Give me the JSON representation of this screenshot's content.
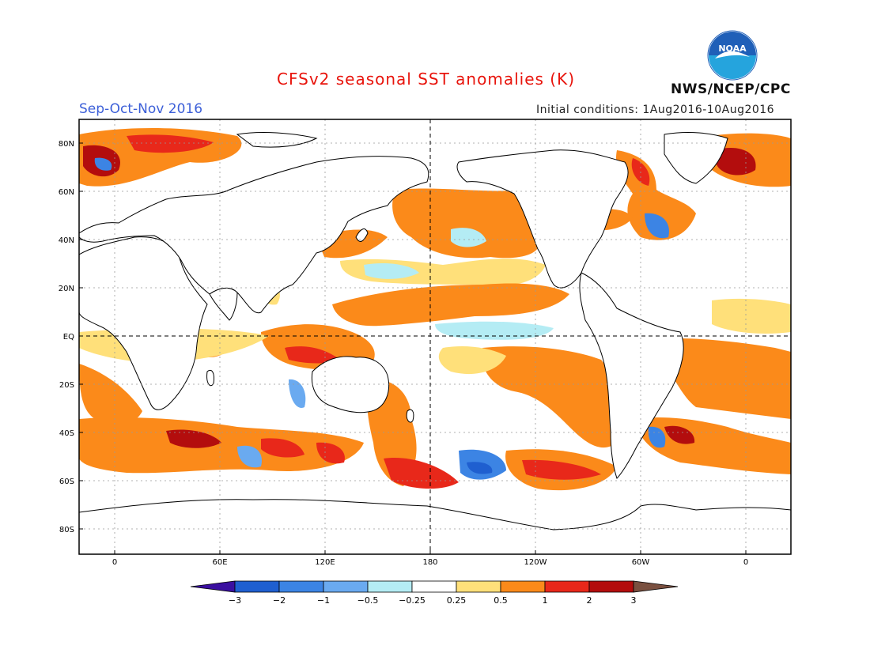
{
  "header": {
    "title": "CFSv2 seasonal SST anomalies (K)",
    "agency": "NWS/NCEP/CPC",
    "season": "Sep-Oct-Nov 2016",
    "initial_conditions": "Initial conditions: 1Aug2016-10Aug2016"
  },
  "logo": {
    "text": "NOAA",
    "icon": "noaa-logo-icon",
    "color_top": "#1f5fb8",
    "color_bottom": "#25a4dd"
  },
  "map": {
    "lat_labels": [
      "80N",
      "60N",
      "40N",
      "20N",
      "EQ",
      "20S",
      "40S",
      "60S",
      "80S"
    ],
    "lon_labels": [
      "0",
      "60E",
      "120E",
      "180",
      "120W",
      "60W",
      "0"
    ]
  },
  "colorbar": {
    "labels": [
      "-3",
      "-2",
      "-1",
      "-0.5",
      "-0.25",
      "0.25",
      "0.5",
      "1",
      "2",
      "3"
    ],
    "colors": [
      "#3a0fa0",
      "#1f5fd0",
      "#3c84e4",
      "#6aaaf0",
      "#b4ecf4",
      "#ffffff",
      "#ffe07a",
      "#fb8a1a",
      "#e8281a",
      "#b30d0d",
      "#7a5040"
    ]
  },
  "colors": {
    "land": "#ffffff",
    "coast": "#000000",
    "grid": "#888888"
  }
}
